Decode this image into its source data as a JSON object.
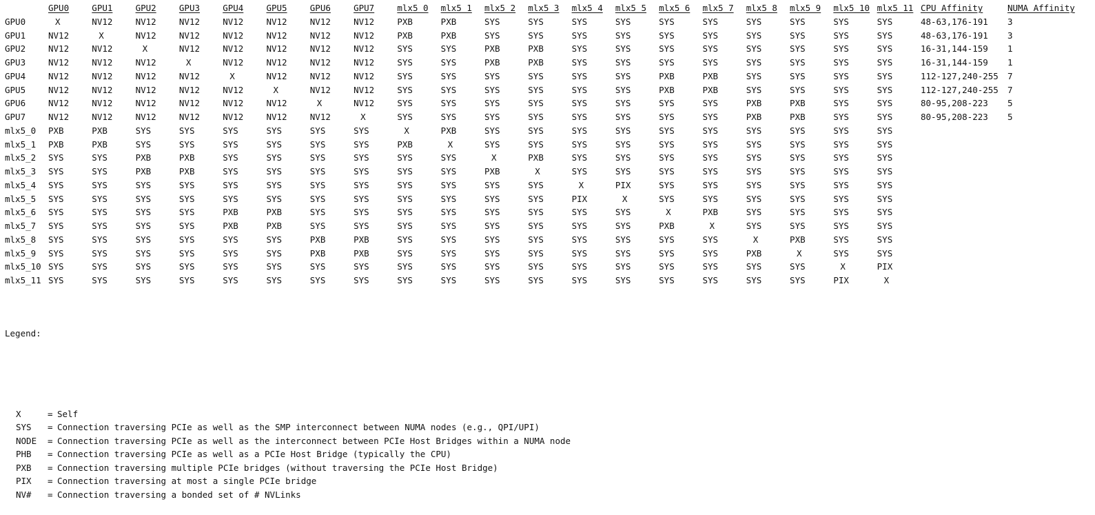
{
  "matrix": {
    "columns": [
      "GPU0",
      "GPU1",
      "GPU2",
      "GPU3",
      "GPU4",
      "GPU5",
      "GPU6",
      "GPU7",
      "mlx5_0",
      "mlx5_1",
      "mlx5_2",
      "mlx5_3",
      "mlx5_4",
      "mlx5_5",
      "mlx5_6",
      "mlx5_7",
      "mlx5_8",
      "mlx5_9",
      "mlx5_10",
      "mlx5_11",
      "CPU Affinity",
      "NUMA Affinity"
    ],
    "rows": [
      {
        "label": "GPU0",
        "cells": [
          "X",
          "NV12",
          "NV12",
          "NV12",
          "NV12",
          "NV12",
          "NV12",
          "NV12",
          "PXB",
          "PXB",
          "SYS",
          "SYS",
          "SYS",
          "SYS",
          "SYS",
          "SYS",
          "SYS",
          "SYS",
          "SYS",
          "SYS",
          "48-63,176-191",
          "3"
        ]
      },
      {
        "label": "GPU1",
        "cells": [
          "NV12",
          "X",
          "NV12",
          "NV12",
          "NV12",
          "NV12",
          "NV12",
          "NV12",
          "PXB",
          "PXB",
          "SYS",
          "SYS",
          "SYS",
          "SYS",
          "SYS",
          "SYS",
          "SYS",
          "SYS",
          "SYS",
          "SYS",
          "48-63,176-191",
          "3"
        ]
      },
      {
        "label": "GPU2",
        "cells": [
          "NV12",
          "NV12",
          "X",
          "NV12",
          "NV12",
          "NV12",
          "NV12",
          "NV12",
          "SYS",
          "SYS",
          "PXB",
          "PXB",
          "SYS",
          "SYS",
          "SYS",
          "SYS",
          "SYS",
          "SYS",
          "SYS",
          "SYS",
          "16-31,144-159",
          "1"
        ]
      },
      {
        "label": "GPU3",
        "cells": [
          "NV12",
          "NV12",
          "NV12",
          "X",
          "NV12",
          "NV12",
          "NV12",
          "NV12",
          "SYS",
          "SYS",
          "PXB",
          "PXB",
          "SYS",
          "SYS",
          "SYS",
          "SYS",
          "SYS",
          "SYS",
          "SYS",
          "SYS",
          "16-31,144-159",
          "1"
        ]
      },
      {
        "label": "GPU4",
        "cells": [
          "NV12",
          "NV12",
          "NV12",
          "NV12",
          "X",
          "NV12",
          "NV12",
          "NV12",
          "SYS",
          "SYS",
          "SYS",
          "SYS",
          "SYS",
          "SYS",
          "PXB",
          "PXB",
          "SYS",
          "SYS",
          "SYS",
          "SYS",
          "112-127,240-255",
          "7"
        ]
      },
      {
        "label": "GPU5",
        "cells": [
          "NV12",
          "NV12",
          "NV12",
          "NV12",
          "NV12",
          "X",
          "NV12",
          "NV12",
          "SYS",
          "SYS",
          "SYS",
          "SYS",
          "SYS",
          "SYS",
          "PXB",
          "PXB",
          "SYS",
          "SYS",
          "SYS",
          "SYS",
          "112-127,240-255",
          "7"
        ]
      },
      {
        "label": "GPU6",
        "cells": [
          "NV12",
          "NV12",
          "NV12",
          "NV12",
          "NV12",
          "NV12",
          "X",
          "NV12",
          "SYS",
          "SYS",
          "SYS",
          "SYS",
          "SYS",
          "SYS",
          "SYS",
          "SYS",
          "PXB",
          "PXB",
          "SYS",
          "SYS",
          "80-95,208-223",
          "5"
        ]
      },
      {
        "label": "GPU7",
        "cells": [
          "NV12",
          "NV12",
          "NV12",
          "NV12",
          "NV12",
          "NV12",
          "NV12",
          "X",
          "SYS",
          "SYS",
          "SYS",
          "SYS",
          "SYS",
          "SYS",
          "SYS",
          "SYS",
          "PXB",
          "PXB",
          "SYS",
          "SYS",
          "80-95,208-223",
          "5"
        ]
      },
      {
        "label": "mlx5_0",
        "cells": [
          "PXB",
          "PXB",
          "SYS",
          "SYS",
          "SYS",
          "SYS",
          "SYS",
          "SYS",
          "X",
          "PXB",
          "SYS",
          "SYS",
          "SYS",
          "SYS",
          "SYS",
          "SYS",
          "SYS",
          "SYS",
          "SYS",
          "SYS",
          "",
          ""
        ]
      },
      {
        "label": "mlx5_1",
        "cells": [
          "PXB",
          "PXB",
          "SYS",
          "SYS",
          "SYS",
          "SYS",
          "SYS",
          "SYS",
          "PXB",
          "X",
          "SYS",
          "SYS",
          "SYS",
          "SYS",
          "SYS",
          "SYS",
          "SYS",
          "SYS",
          "SYS",
          "SYS",
          "",
          ""
        ]
      },
      {
        "label": "mlx5_2",
        "cells": [
          "SYS",
          "SYS",
          "PXB",
          "PXB",
          "SYS",
          "SYS",
          "SYS",
          "SYS",
          "SYS",
          "SYS",
          "X",
          "PXB",
          "SYS",
          "SYS",
          "SYS",
          "SYS",
          "SYS",
          "SYS",
          "SYS",
          "SYS",
          "",
          ""
        ]
      },
      {
        "label": "mlx5_3",
        "cells": [
          "SYS",
          "SYS",
          "PXB",
          "PXB",
          "SYS",
          "SYS",
          "SYS",
          "SYS",
          "SYS",
          "SYS",
          "PXB",
          "X",
          "SYS",
          "SYS",
          "SYS",
          "SYS",
          "SYS",
          "SYS",
          "SYS",
          "SYS",
          "",
          ""
        ]
      },
      {
        "label": "mlx5_4",
        "cells": [
          "SYS",
          "SYS",
          "SYS",
          "SYS",
          "SYS",
          "SYS",
          "SYS",
          "SYS",
          "SYS",
          "SYS",
          "SYS",
          "SYS",
          "X",
          "PIX",
          "SYS",
          "SYS",
          "SYS",
          "SYS",
          "SYS",
          "SYS",
          "",
          ""
        ]
      },
      {
        "label": "mlx5_5",
        "cells": [
          "SYS",
          "SYS",
          "SYS",
          "SYS",
          "SYS",
          "SYS",
          "SYS",
          "SYS",
          "SYS",
          "SYS",
          "SYS",
          "SYS",
          "PIX",
          "X",
          "SYS",
          "SYS",
          "SYS",
          "SYS",
          "SYS",
          "SYS",
          "",
          ""
        ]
      },
      {
        "label": "mlx5_6",
        "cells": [
          "SYS",
          "SYS",
          "SYS",
          "SYS",
          "PXB",
          "PXB",
          "SYS",
          "SYS",
          "SYS",
          "SYS",
          "SYS",
          "SYS",
          "SYS",
          "SYS",
          "X",
          "PXB",
          "SYS",
          "SYS",
          "SYS",
          "SYS",
          "",
          ""
        ]
      },
      {
        "label": "mlx5_7",
        "cells": [
          "SYS",
          "SYS",
          "SYS",
          "SYS",
          "PXB",
          "PXB",
          "SYS",
          "SYS",
          "SYS",
          "SYS",
          "SYS",
          "SYS",
          "SYS",
          "SYS",
          "PXB",
          "X",
          "SYS",
          "SYS",
          "SYS",
          "SYS",
          "",
          ""
        ]
      },
      {
        "label": "mlx5_8",
        "cells": [
          "SYS",
          "SYS",
          "SYS",
          "SYS",
          "SYS",
          "SYS",
          "PXB",
          "PXB",
          "SYS",
          "SYS",
          "SYS",
          "SYS",
          "SYS",
          "SYS",
          "SYS",
          "SYS",
          "X",
          "PXB",
          "SYS",
          "SYS",
          "",
          ""
        ]
      },
      {
        "label": "mlx5_9",
        "cells": [
          "SYS",
          "SYS",
          "SYS",
          "SYS",
          "SYS",
          "SYS",
          "PXB",
          "PXB",
          "SYS",
          "SYS",
          "SYS",
          "SYS",
          "SYS",
          "SYS",
          "SYS",
          "SYS",
          "PXB",
          "X",
          "SYS",
          "SYS",
          "",
          ""
        ]
      },
      {
        "label": "mlx5_10",
        "cells": [
          "SYS",
          "SYS",
          "SYS",
          "SYS",
          "SYS",
          "SYS",
          "SYS",
          "SYS",
          "SYS",
          "SYS",
          "SYS",
          "SYS",
          "SYS",
          "SYS",
          "SYS",
          "SYS",
          "SYS",
          "SYS",
          "X",
          "PIX",
          "",
          ""
        ]
      },
      {
        "label": "mlx5_11",
        "cells": [
          "SYS",
          "SYS",
          "SYS",
          "SYS",
          "SYS",
          "SYS",
          "SYS",
          "SYS",
          "SYS",
          "SYS",
          "SYS",
          "SYS",
          "SYS",
          "SYS",
          "SYS",
          "SYS",
          "SYS",
          "SYS",
          "PIX",
          "X",
          "",
          ""
        ]
      }
    ]
  },
  "legend": {
    "title": "Legend:",
    "entries": [
      {
        "code": "X",
        "text": "Self"
      },
      {
        "code": "SYS",
        "text": "Connection traversing PCIe as well as the SMP interconnect between NUMA nodes (e.g., QPI/UPI)"
      },
      {
        "code": "NODE",
        "text": "Connection traversing PCIe as well as the interconnect between PCIe Host Bridges within a NUMA node"
      },
      {
        "code": "PHB",
        "text": "Connection traversing PCIe as well as a PCIe Host Bridge (typically the CPU)"
      },
      {
        "code": "PXB",
        "text": "Connection traversing multiple PCIe bridges (without traversing the PCIe Host Bridge)"
      },
      {
        "code": "PIX",
        "text": "Connection traversing at most a single PCIe bridge"
      },
      {
        "code": "NV#",
        "text": "Connection traversing a bonded set of # NVLinks"
      }
    ]
  }
}
